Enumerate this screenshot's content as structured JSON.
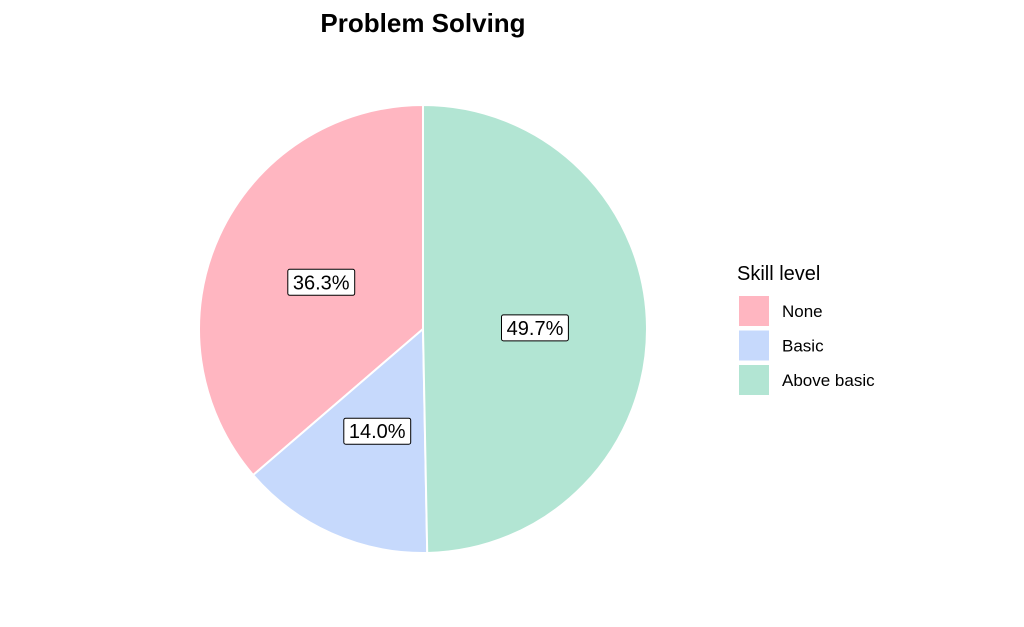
{
  "chart_data": {
    "type": "pie",
    "title": "Problem Solving",
    "legend": {
      "title": "Skill level",
      "position": "right"
    },
    "categories": [
      "None",
      "Basic",
      "Above basic"
    ],
    "values": [
      36.3,
      14.0,
      49.7
    ],
    "labels": [
      "36.3%",
      "14.0%",
      "49.7%"
    ],
    "colors": [
      "#ffb6c1",
      "#c6d9fc",
      "#b2e5d3"
    ],
    "start_angle": "12 o'clock",
    "direction": "counterclockwise"
  }
}
